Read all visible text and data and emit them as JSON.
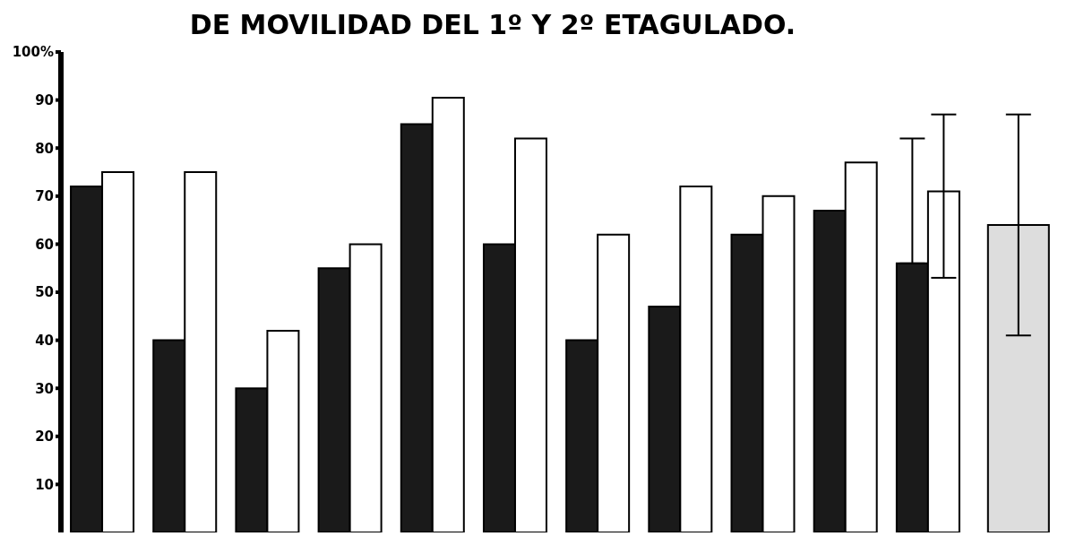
{
  "chart_data": [
    {
      "type": "bar",
      "title": "DE MOVILIDAD DEL 1º Y 2º ETAGULADO.",
      "categories": [
        null,
        null,
        null,
        null,
        null,
        null,
        null,
        null,
        null,
        null,
        null
      ],
      "series": [
        {
          "color": "#1a1a1a",
          "values": [
            72,
            40,
            30,
            55,
            85,
            60,
            40,
            47,
            62,
            67,
            56
          ],
          "errors": [
            null,
            null,
            null,
            null,
            null,
            null,
            null,
            null,
            null,
            null,
            [
              56,
              82
            ]
          ]
        },
        {
          "color": "#ffffff",
          "values": [
            75,
            75,
            42,
            60,
            90.5,
            82,
            62,
            72,
            70,
            77,
            71
          ],
          "errors": [
            null,
            null,
            null,
            null,
            null,
            null,
            null,
            null,
            null,
            null,
            [
              53,
              87
            ]
          ]
        }
      ],
      "ylim": [
        0,
        100
      ],
      "yticks": [
        10,
        20,
        30,
        40,
        50,
        60,
        70,
        80,
        90,
        {
          "value": 100,
          "label": "100%"
        }
      ],
      "grid": false,
      "legend": false
    },
    {
      "type": "bar",
      "categories": [
        null
      ],
      "series": [
        {
          "color": "#dddddd",
          "values": [
            64
          ],
          "errors": [
            [
              41,
              87
            ]
          ]
        }
      ],
      "ylim": [
        0,
        100
      ],
      "tick_labels": false,
      "grid": false,
      "legend": false
    }
  ]
}
